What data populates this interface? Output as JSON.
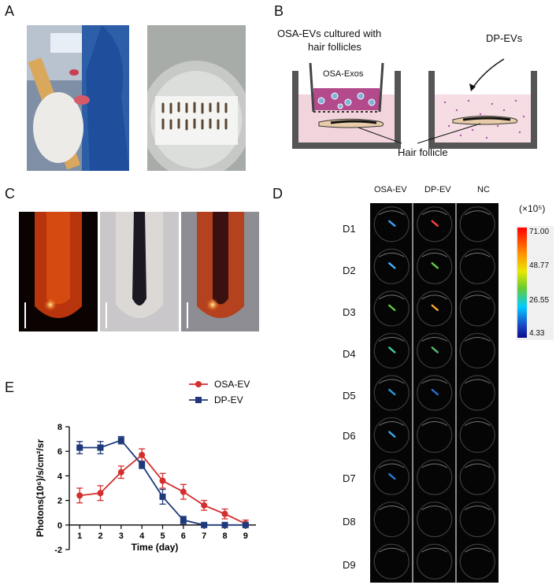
{
  "panels": {
    "A": {
      "label": "A"
    },
    "B": {
      "label": "B",
      "left_caption": "OSA-EVs cultured with hair follicles",
      "left_caption_line1": "OSA-EVs cultured with",
      "left_caption_line2": "hair follicles",
      "insert_label": "OSA-Exos",
      "right_caption": "DP-EVs",
      "bottom_caption": "Hair follicle"
    },
    "C": {
      "label": "C"
    },
    "D": {
      "label": "D",
      "columns": [
        "OSA-EV",
        "DP-EV",
        "NC"
      ],
      "rows": [
        "D1",
        "D2",
        "D3",
        "D4",
        "D5",
        "D6",
        "D7",
        "D8",
        "D9"
      ],
      "scale_unit": "(×10⁵)",
      "scale_ticks": [
        "71.00",
        "48.77",
        "26.55",
        "4.33"
      ]
    },
    "E": {
      "label": "E"
    }
  },
  "chart_data": {
    "type": "line",
    "title": "",
    "xlabel": "Time (day)",
    "ylabel": "Photons(10⁶)/s/cm²/sr",
    "x": [
      1,
      2,
      3,
      4,
      5,
      6,
      7,
      8,
      9
    ],
    "xticks": [
      "1",
      "2",
      "3",
      "4",
      "5",
      "6",
      "7",
      "8",
      "9"
    ],
    "yticks": [
      "8",
      "6",
      "4",
      "2",
      "0",
      "-2"
    ],
    "ytick_values": [
      8,
      6,
      4,
      2,
      0,
      -2
    ],
    "ylim": [
      -2,
      8
    ],
    "legend_position": "top-right",
    "series": [
      {
        "name": "OSA-EV",
        "color": "#d32f2f",
        "marker": "circle",
        "values": [
          2.4,
          2.6,
          4.3,
          5.7,
          3.6,
          2.7,
          1.6,
          0.9,
          0.1
        ],
        "errors": [
          0.6,
          0.6,
          0.5,
          0.5,
          0.6,
          0.6,
          0.4,
          0.4,
          0.3
        ]
      },
      {
        "name": "DP-EV",
        "color": "#1f3a7a",
        "marker": "square",
        "values": [
          6.3,
          6.3,
          6.9,
          4.9,
          2.3,
          0.4,
          0.0,
          0.0,
          0.0
        ],
        "errors": [
          0.5,
          0.5,
          0.3,
          0.3,
          0.6,
          0.3,
          0.1,
          0.1,
          0.1
        ]
      }
    ]
  }
}
